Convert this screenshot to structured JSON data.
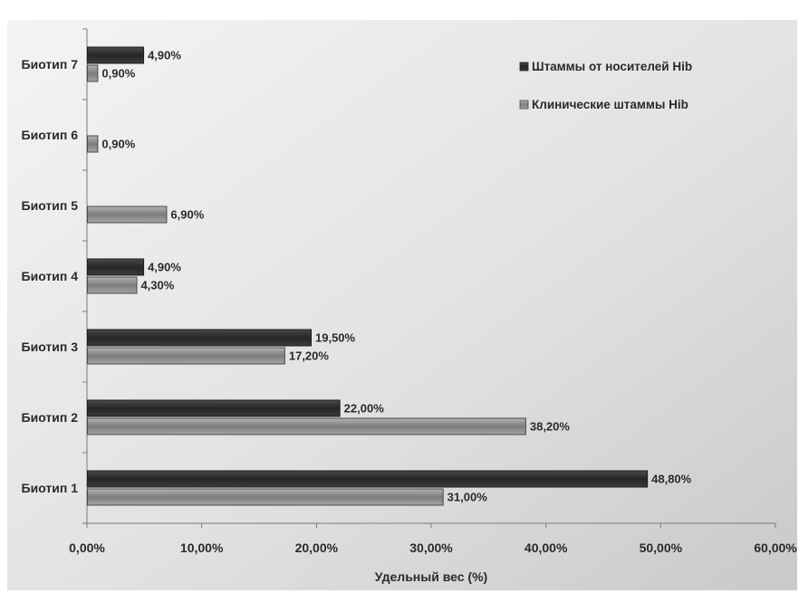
{
  "chart_data": {
    "type": "bar",
    "orientation": "horizontal",
    "title": "",
    "xlabel": "Удельный вес (%)",
    "ylabel": "",
    "xlim": [
      0,
      60
    ],
    "x_ticks": [
      0,
      10,
      20,
      30,
      40,
      50,
      60
    ],
    "x_tick_labels": [
      "0,00%",
      "10,00%",
      "20,00%",
      "30,00%",
      "40,00%",
      "50,00%",
      "60,00%"
    ],
    "grid": false,
    "legend_position": "top-right",
    "categories": [
      "Биотип 1",
      "Биотип 2",
      "Биотип 3",
      "Биотип 4",
      "Биотип 5",
      "Биотип 6",
      "Биотип 7"
    ],
    "series": [
      {
        "name": "Штаммы от носителей Hib",
        "color": "#2e2e2e",
        "values": [
          48.8,
          22.0,
          19.5,
          4.9,
          null,
          null,
          4.9
        ],
        "labels": [
          "48,80%",
          "22,00%",
          "19,50%",
          "4,90%",
          "",
          "",
          "4,90%"
        ]
      },
      {
        "name": "Клинические штаммы Hib",
        "color": "#8a8a8a",
        "values": [
          31.0,
          38.2,
          17.2,
          4.3,
          6.9,
          0.9,
          0.9
        ],
        "labels": [
          "31,00%",
          "38,20%",
          "17,20%",
          "4,30%",
          "6,90%",
          "0,90%",
          "0,90%"
        ]
      }
    ]
  }
}
